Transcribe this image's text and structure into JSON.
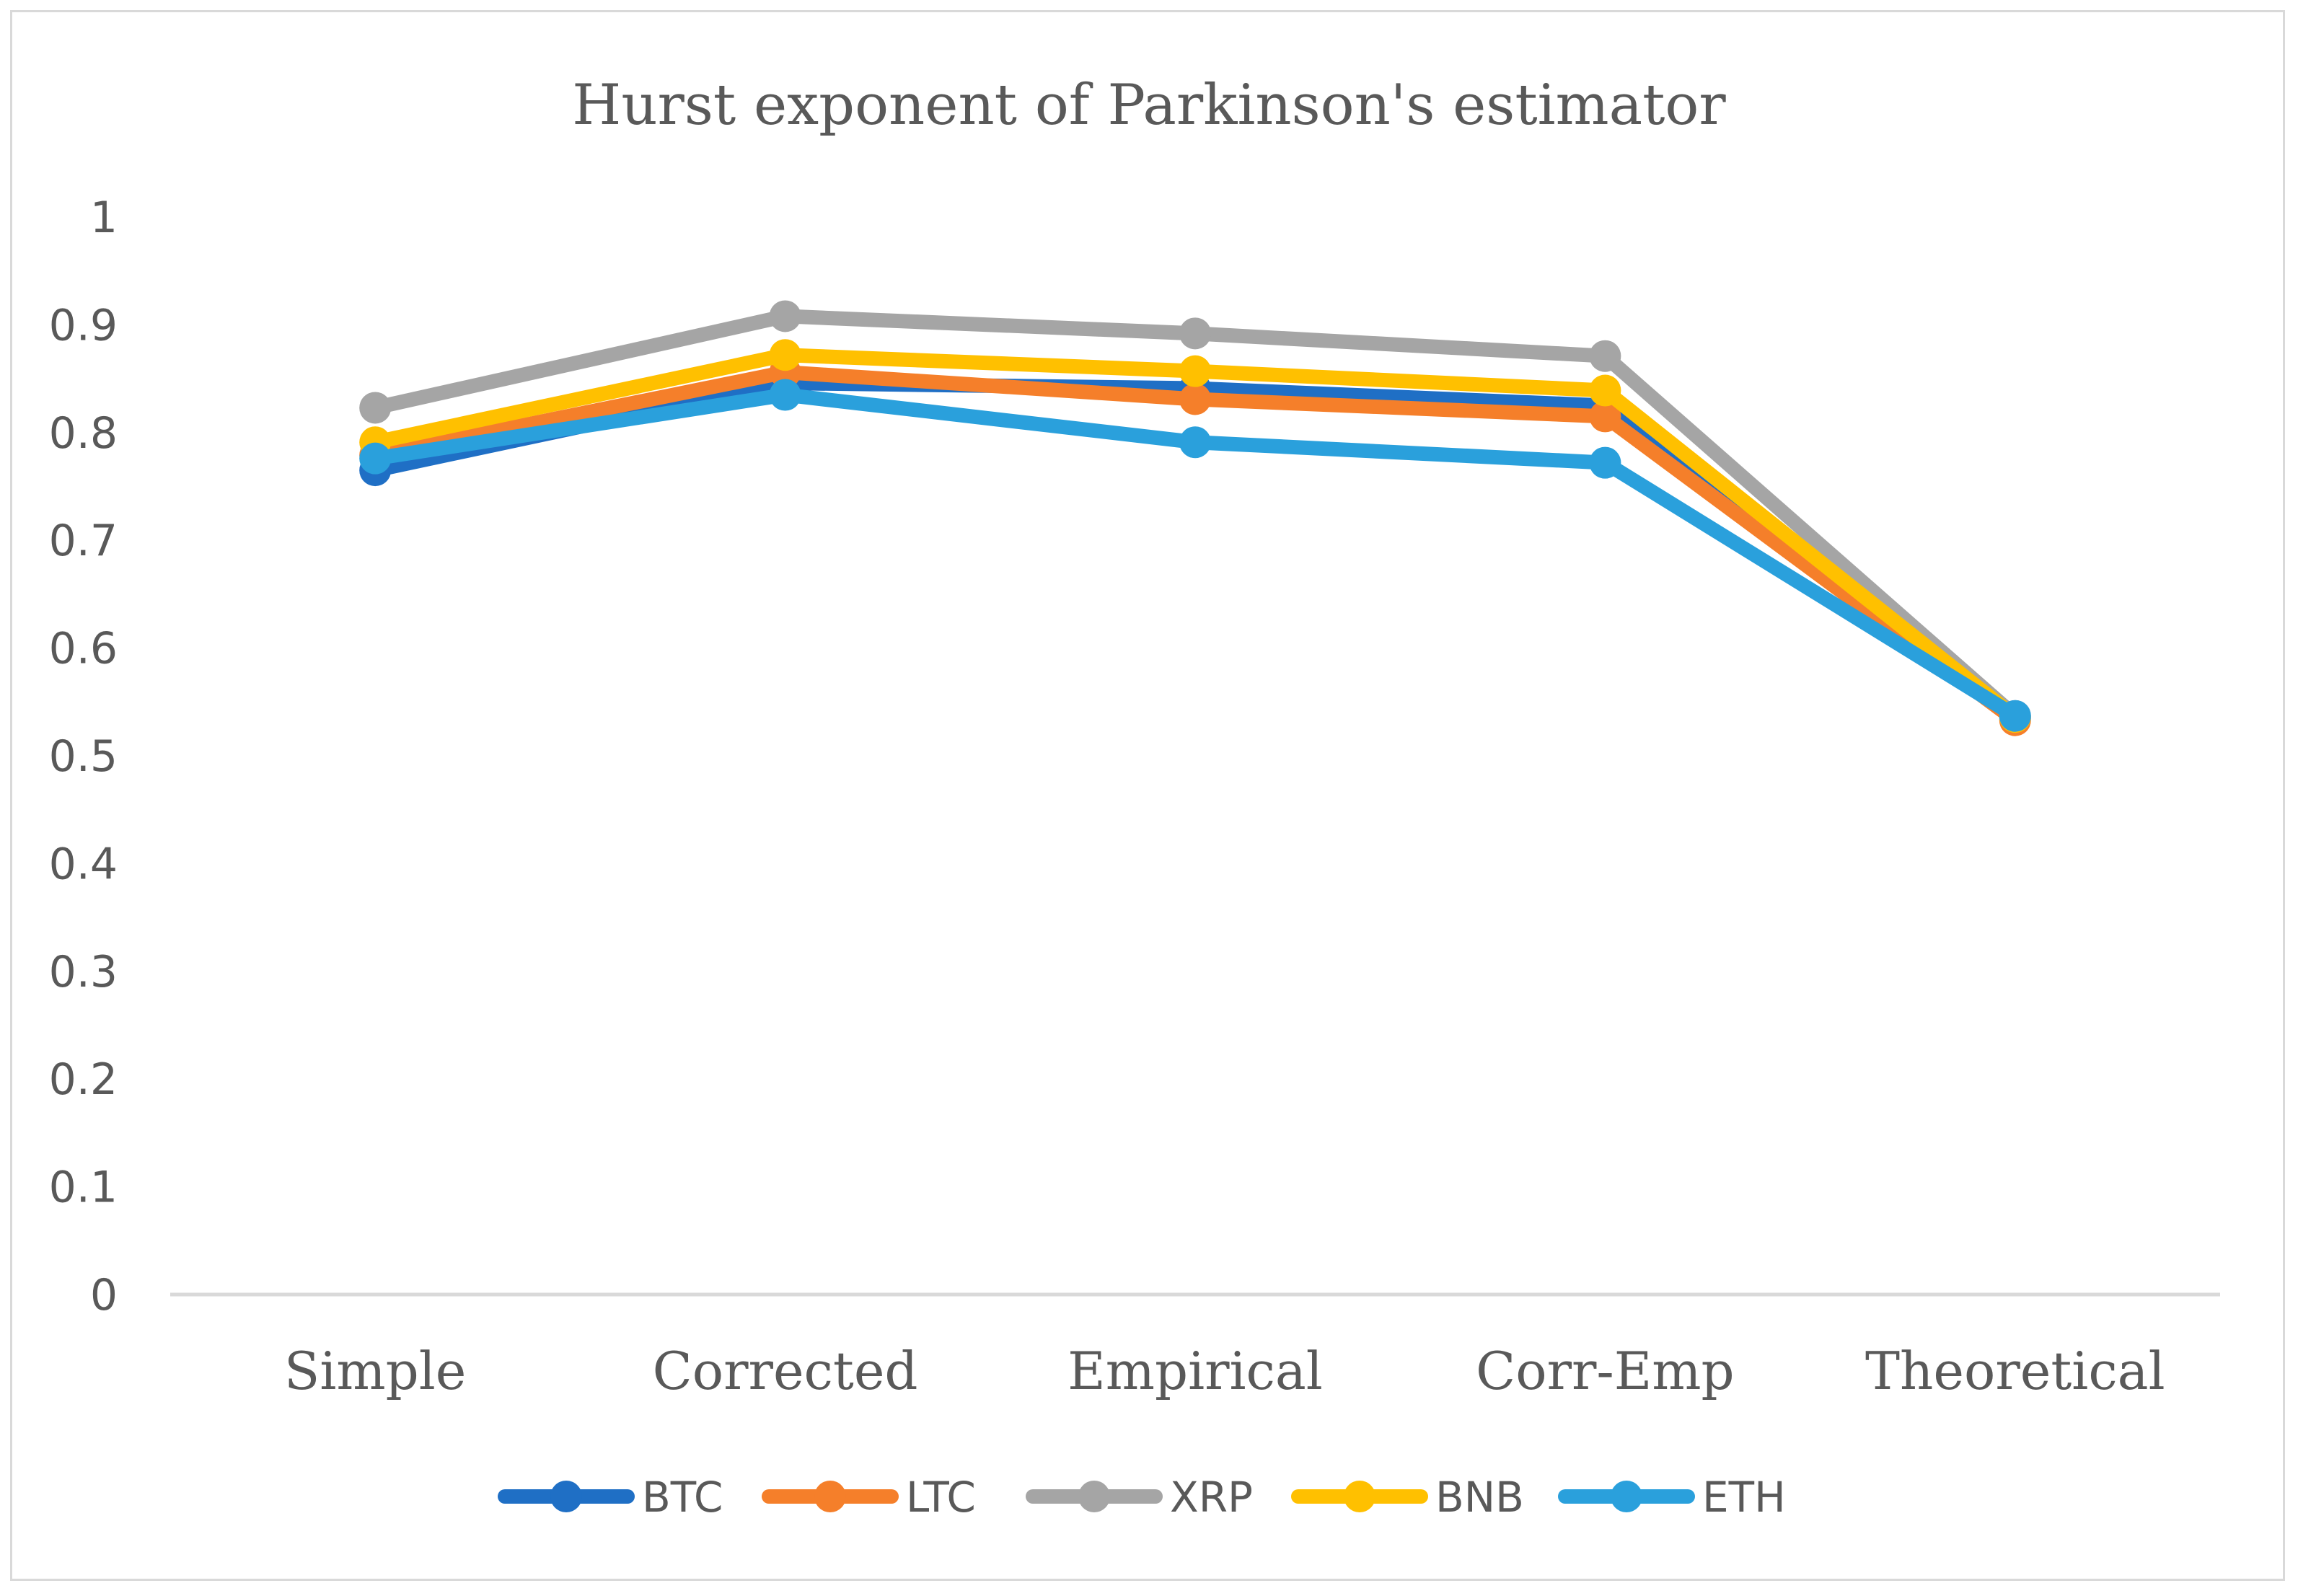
{
  "chart_data": {
    "type": "line",
    "title": "Hurst exponent of Parkinson's estimator",
    "xlabel": "",
    "ylabel": "",
    "categories": [
      "Simple",
      "Corrected",
      "Empirical",
      "Corr-Emp",
      "Theoretical"
    ],
    "ylim": [
      0,
      1
    ],
    "yticks": [
      "0",
      "0.1",
      "0.2",
      "0.3",
      "0.4",
      "0.5",
      "0.6",
      "0.7",
      "0.8",
      "0.9",
      "1"
    ],
    "grid": false,
    "legend_position": "bottom",
    "series": [
      {
        "name": "BTC",
        "color": "#1f6fc5",
        "values": [
          0.765,
          0.846,
          0.841,
          0.825,
          0.535
        ]
      },
      {
        "name": "LTC",
        "color": "#f57f2a",
        "values": [
          0.779,
          0.856,
          0.831,
          0.815,
          0.533
        ]
      },
      {
        "name": "XRP",
        "color": "#a5a5a5",
        "values": [
          0.823,
          0.908,
          0.892,
          0.871,
          0.537
        ]
      },
      {
        "name": "BNB",
        "color": "#ffc000",
        "values": [
          0.791,
          0.872,
          0.857,
          0.839,
          0.536
        ]
      },
      {
        "name": "ETH",
        "color": "#2aa0dc",
        "values": [
          0.776,
          0.835,
          0.791,
          0.772,
          0.537
        ]
      }
    ]
  }
}
